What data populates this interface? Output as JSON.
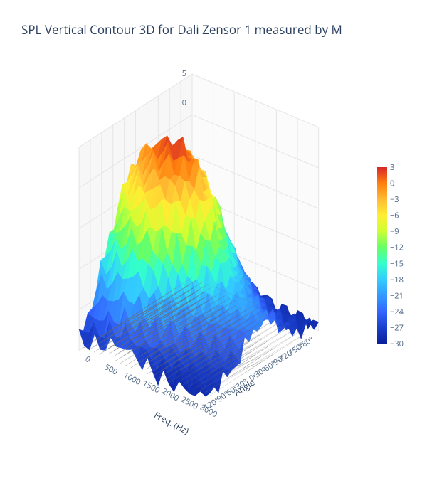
{
  "title": "SPL Vertical Contour 3D for Dali Zensor 1 measured by M",
  "title_color": "#2a3f5f",
  "title_fontsize": 17,
  "background": "#ffffff",
  "chart": {
    "type": "surface3d",
    "x_axis": {
      "label": "Angle",
      "ticks": [
        "-180°",
        "-150°",
        "-120°",
        "-90°",
        "-60°",
        "-30°",
        "0°",
        "30°",
        "60°",
        "90°",
        "120°"
      ],
      "range": [
        -180,
        180
      ]
    },
    "y_axis": {
      "label": "Freq. (Hz)",
      "ticks": [
        "0",
        "500",
        "1000",
        "1500",
        "2000",
        "2500",
        "3000"
      ],
      "range": [
        0,
        3300
      ]
    },
    "z_axis": {
      "label": "",
      "ticks": [
        "0",
        "5"
      ],
      "range": [
        -30,
        5
      ]
    },
    "colorbar": {
      "ticks": [
        "3",
        "0",
        "-3",
        "-6",
        "-9",
        "-12",
        "-15",
        "-18",
        "-21",
        "-24",
        "-27",
        "-30"
      ],
      "colors": [
        "#d62728",
        "#ff7f0e",
        "#ffbb33",
        "#ffee33",
        "#ccff33",
        "#66ff66",
        "#33ffcc",
        "#33ccff",
        "#3399ff",
        "#3366ff",
        "#1a3fcc",
        "#0a1f99"
      ],
      "range": [
        -30,
        3
      ]
    },
    "gridline_color": "#e5e5e5",
    "axis_pane_color": "#f0f0f0",
    "tick_color": "#506784",
    "surface_samples_angle": [
      -180,
      -150,
      -120,
      -90,
      -60,
      -30,
      0,
      30,
      60,
      90,
      120,
      150,
      180
    ],
    "surface_samples_freq": [
      20,
      100,
      300,
      600,
      1000,
      1500,
      2000,
      2500,
      3000,
      3300
    ],
    "surface_values": [
      [
        -28,
        -28,
        -27,
        -26,
        -27,
        -28,
        -29,
        -29,
        -29,
        -29
      ],
      [
        -25,
        -24,
        -23,
        -22,
        -24,
        -26,
        -27,
        -28,
        -28,
        -28
      ],
      [
        -20,
        -18,
        -16,
        -15,
        -18,
        -22,
        -25,
        -27,
        -27,
        -28
      ],
      [
        -15,
        -12,
        -10,
        -9,
        -12,
        -18,
        -22,
        -25,
        -26,
        -27
      ],
      [
        -10,
        -7,
        -5,
        -4,
        -6,
        -12,
        -18,
        -22,
        -24,
        -25
      ],
      [
        -6,
        -3,
        -1,
        0,
        -2,
        -8,
        -15,
        -20,
        -22,
        -23
      ],
      [
        -3,
        0,
        2,
        3,
        1,
        -5,
        -12,
        -18,
        -20,
        -22
      ],
      [
        -6,
        -3,
        -1,
        0,
        -2,
        -8,
        -15,
        -20,
        -22,
        -23
      ],
      [
        -10,
        -7,
        -5,
        -4,
        -6,
        -12,
        -18,
        -22,
        -24,
        -25
      ],
      [
        -15,
        -12,
        -10,
        -9,
        -12,
        -18,
        -22,
        -25,
        -26,
        -27
      ],
      [
        -20,
        -18,
        -16,
        -15,
        -18,
        -22,
        -25,
        -27,
        -27,
        -28
      ],
      [
        -25,
        -24,
        -23,
        -22,
        -24,
        -26,
        -27,
        -28,
        -28,
        -28
      ],
      [
        -28,
        -28,
        -27,
        -26,
        -27,
        -28,
        -29,
        -29,
        -29,
        -29
      ]
    ]
  }
}
